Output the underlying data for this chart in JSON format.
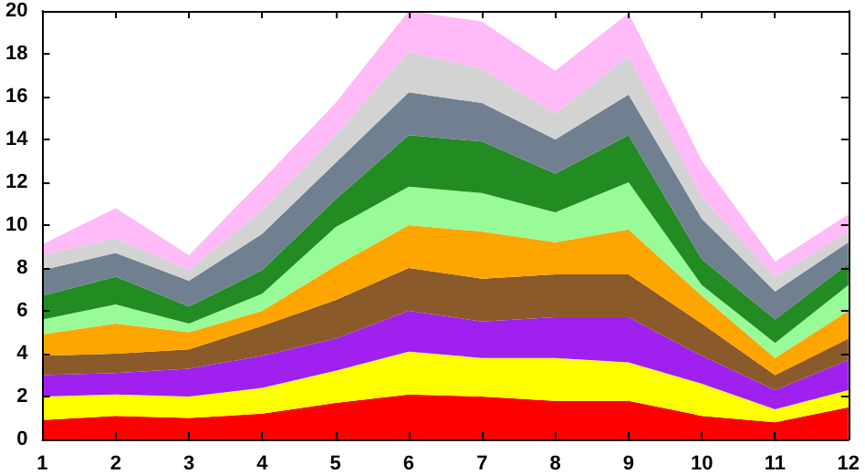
{
  "chart_data": {
    "type": "area",
    "stacked": true,
    "x": [
      1,
      2,
      3,
      4,
      5,
      6,
      7,
      8,
      9,
      10,
      11,
      12
    ],
    "xlim": [
      1,
      12
    ],
    "xticks": [
      1,
      2,
      3,
      4,
      5,
      6,
      7,
      8,
      9,
      10,
      11,
      12
    ],
    "ylim": [
      0,
      20
    ],
    "yticks": [
      0,
      2,
      4,
      6,
      8,
      10,
      12,
      14,
      16,
      18,
      20
    ],
    "grid": false,
    "series": [
      {
        "color": "#ff0000",
        "values": [
          0.9,
          1.1,
          1.0,
          1.2,
          1.7,
          2.1,
          2.0,
          1.8,
          1.8,
          1.1,
          0.8,
          1.5
        ]
      },
      {
        "color": "#ffff00",
        "values": [
          1.1,
          1.0,
          1.0,
          1.2,
          1.5,
          2.0,
          1.8,
          2.0,
          1.8,
          1.5,
          0.6,
          0.8
        ]
      },
      {
        "color": "#a020f0",
        "values": [
          1.0,
          1.0,
          1.3,
          1.5,
          1.5,
          1.9,
          1.7,
          1.9,
          2.1,
          1.3,
          0.9,
          1.4
        ]
      },
      {
        "color": "#8b5a2b",
        "values": [
          0.9,
          0.9,
          0.9,
          1.4,
          1.8,
          2.0,
          2.0,
          2.0,
          2.0,
          1.5,
          0.7,
          1.0
        ]
      },
      {
        "color": "#ffa500",
        "values": [
          1.0,
          1.4,
          0.8,
          0.7,
          1.6,
          2.0,
          2.2,
          1.5,
          2.1,
          1.3,
          0.8,
          1.3
        ]
      },
      {
        "color": "#98fb98",
        "values": [
          0.7,
          0.9,
          0.4,
          0.8,
          1.8,
          1.8,
          1.8,
          1.4,
          2.2,
          0.5,
          0.7,
          1.2
        ]
      },
      {
        "color": "#228b22",
        "values": [
          1.1,
          1.3,
          0.8,
          1.1,
          1.3,
          2.4,
          2.4,
          1.8,
          2.2,
          1.2,
          1.1,
          1.0
        ]
      },
      {
        "color": "#708090",
        "values": [
          1.2,
          1.1,
          1.2,
          1.7,
          1.7,
          2.0,
          1.8,
          1.6,
          1.9,
          1.9,
          1.3,
          1.0
        ]
      },
      {
        "color": "#d3d3d3",
        "values": [
          0.7,
          0.7,
          0.5,
          1.1,
          1.3,
          1.9,
          1.6,
          1.2,
          1.8,
          1.0,
          0.7,
          0.5
        ]
      },
      {
        "color": "#ffbaf8",
        "values": [
          0.5,
          1.4,
          0.7,
          1.4,
          1.5,
          1.9,
          2.2,
          2.0,
          2.0,
          1.7,
          0.7,
          0.8
        ]
      }
    ]
  }
}
